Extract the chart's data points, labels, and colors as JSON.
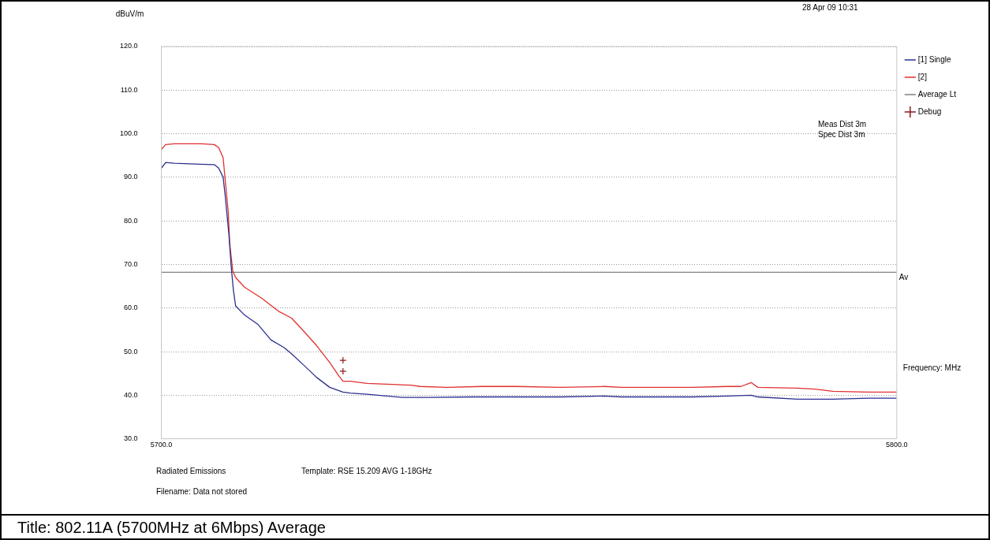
{
  "chart_data": {
    "type": "line",
    "title": "Title: 802.11A (5700MHz at 6Mbps) Average",
    "xlabel": "Frequency: MHz",
    "ylabel": "dBuV/m",
    "xlim": [
      5700,
      5800
    ],
    "xticks": [
      {
        "value": 5700,
        "label": "5700.0"
      },
      {
        "value": 5800,
        "label": "5800.0"
      }
    ],
    "ylim": [
      30,
      120
    ],
    "yticks": [
      {
        "value": 30,
        "label": "30.0"
      },
      {
        "value": 40,
        "label": "40.0"
      },
      {
        "value": 50,
        "label": "50.0"
      },
      {
        "value": 60,
        "label": "60.0"
      },
      {
        "value": 70,
        "label": "70.0"
      },
      {
        "value": 80,
        "label": "80.0"
      },
      {
        "value": 90,
        "label": "90.0"
      },
      {
        "value": 100,
        "label": "100.0"
      },
      {
        "value": 110,
        "label": "110.0"
      },
      {
        "value": 120,
        "label": "120.0"
      }
    ],
    "grid": "y",
    "legend": "right",
    "marker": "none",
    "series": [
      {
        "name": "[1] Single",
        "color": "#2b2f8f",
        "x": [
          5700.0,
          5700.6,
          5701.8,
          5705.4,
          5707.2,
          5707.8,
          5708.4,
          5708.7,
          5709.2,
          5709.5,
          5709.8,
          5710.1,
          5711.3,
          5713.1,
          5714.9,
          5716.7,
          5717.7,
          5719.3,
          5721.1,
          5722.9,
          5724.7,
          5725.7,
          5728.0,
          5732.8,
          5736.4,
          5742.4,
          5748.3,
          5754.3,
          5760.3,
          5762.6,
          5767.4,
          5772.2,
          5777.0,
          5780.2,
          5781.1,
          5786.5,
          5791.3,
          5796.1,
          5800.0
        ],
        "values": [
          92.1,
          93.4,
          93.2,
          93.0,
          92.9,
          92.1,
          90.0,
          85.5,
          76.6,
          69.5,
          64.1,
          60.5,
          58.4,
          56.3,
          52.7,
          50.9,
          49.5,
          47.0,
          44.1,
          41.8,
          40.7,
          40.5,
          40.2,
          39.5,
          39.5,
          39.6,
          39.6,
          39.6,
          39.8,
          39.6,
          39.6,
          39.6,
          39.8,
          40.0,
          39.6,
          39.1,
          39.1,
          39.3,
          39.3
        ]
      },
      {
        "name": "[2]",
        "color": "#e03030",
        "x": [
          5700.0,
          5700.6,
          5701.8,
          5705.4,
          5707.2,
          5707.8,
          5708.4,
          5708.7,
          5709.1,
          5709.3,
          5709.7,
          5710.1,
          5711.3,
          5713.6,
          5715.9,
          5717.7,
          5719.3,
          5721.1,
          5722.9,
          5724.1,
          5724.7,
          5725.7,
          5728.0,
          5734.0,
          5735.2,
          5738.8,
          5743.6,
          5748.3,
          5754.3,
          5760.3,
          5762.6,
          5767.4,
          5772.2,
          5777.0,
          5778.8,
          5780.2,
          5781.1,
          5786.5,
          5788.9,
          5791.3,
          5796.1,
          5800.0
        ],
        "values": [
          96.4,
          97.5,
          97.7,
          97.7,
          97.5,
          96.8,
          94.5,
          89.1,
          82.0,
          74.8,
          68.6,
          67.0,
          64.8,
          62.3,
          59.3,
          57.7,
          54.8,
          51.4,
          47.5,
          44.5,
          43.2,
          43.2,
          42.7,
          42.3,
          42.0,
          41.8,
          42.0,
          42.0,
          41.8,
          42.0,
          41.8,
          41.8,
          41.8,
          42.0,
          42.0,
          42.9,
          41.8,
          41.6,
          41.4,
          40.9,
          40.7,
          40.7
        ]
      },
      {
        "name": "Average Lt",
        "color": "#808080",
        "x": [
          5700,
          5800
        ],
        "values": [
          68.2,
          68.2
        ]
      },
      {
        "name": "Debug",
        "type": "scatter",
        "marker": "cross",
        "color": "#8b1a1a",
        "x": [
          5724.7,
          5724.7
        ],
        "values": [
          48.0,
          45.5
        ]
      }
    ],
    "annotations": [
      "28 Apr 09 10:31",
      "Meas Dist 3m",
      "Spec Dist 3m",
      "Radiated Emissions",
      "Template: RSE 15.209 AVG 1-18GHz",
      "Filename: Data not stored",
      {
        "text": "Av",
        "x": 5800,
        "y": 68.2
      }
    ]
  }
}
